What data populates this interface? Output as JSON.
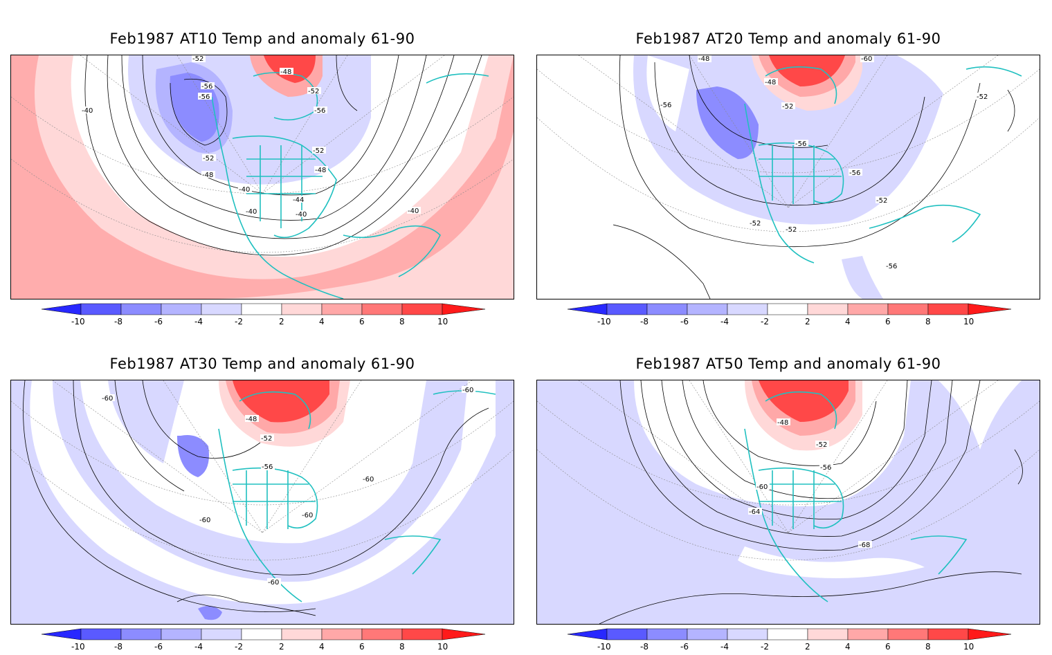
{
  "colors": {
    "neg10": "#2828ff",
    "neg8": "#5a5aff",
    "neg6": "#8c8cff",
    "neg4": "#b4b4ff",
    "neg2": "#d8d8ff",
    "pos2": "#ffd8d8",
    "pos4": "#ffa8a8",
    "pos6": "#ff7878",
    "pos8": "#ff4848",
    "pos10": "#ff1a1a",
    "coast": "#20c0c0",
    "contour": "#000000"
  },
  "colorbar": {
    "labels": [
      "-10",
      "-8",
      "-6",
      "-4",
      "-2",
      "2",
      "4",
      "6",
      "8",
      "10"
    ]
  },
  "panels": [
    {
      "title": "Feb1987 AT10 Temp and anomaly 61-90",
      "contour_labels": [
        "-52",
        "-48",
        "-52",
        "-56",
        "-56",
        "-40",
        "-56",
        "-52",
        "-52",
        "-48",
        "-48",
        "-40",
        "-44",
        "-40",
        "-40",
        "-40"
      ]
    },
    {
      "title": "Feb1987 AT20 Temp and anomaly 61-90",
      "contour_labels": [
        "-48",
        "-60",
        "-48",
        "-56",
        "-52",
        "-52",
        "-56",
        "-56",
        "-52",
        "-52",
        "-52",
        "-56"
      ]
    },
    {
      "title": "Feb1987 AT30 Temp and anomaly 61-90",
      "contour_labels": [
        "-60",
        "-60",
        "-48",
        "-52",
        "-56",
        "-60",
        "-60",
        "-60",
        "-60"
      ]
    },
    {
      "title": "Feb1987 AT50 Temp and anomaly 61-90",
      "contour_labels": [
        "-48",
        "-52",
        "-56",
        "-60",
        "-64",
        "-68"
      ]
    }
  ]
}
